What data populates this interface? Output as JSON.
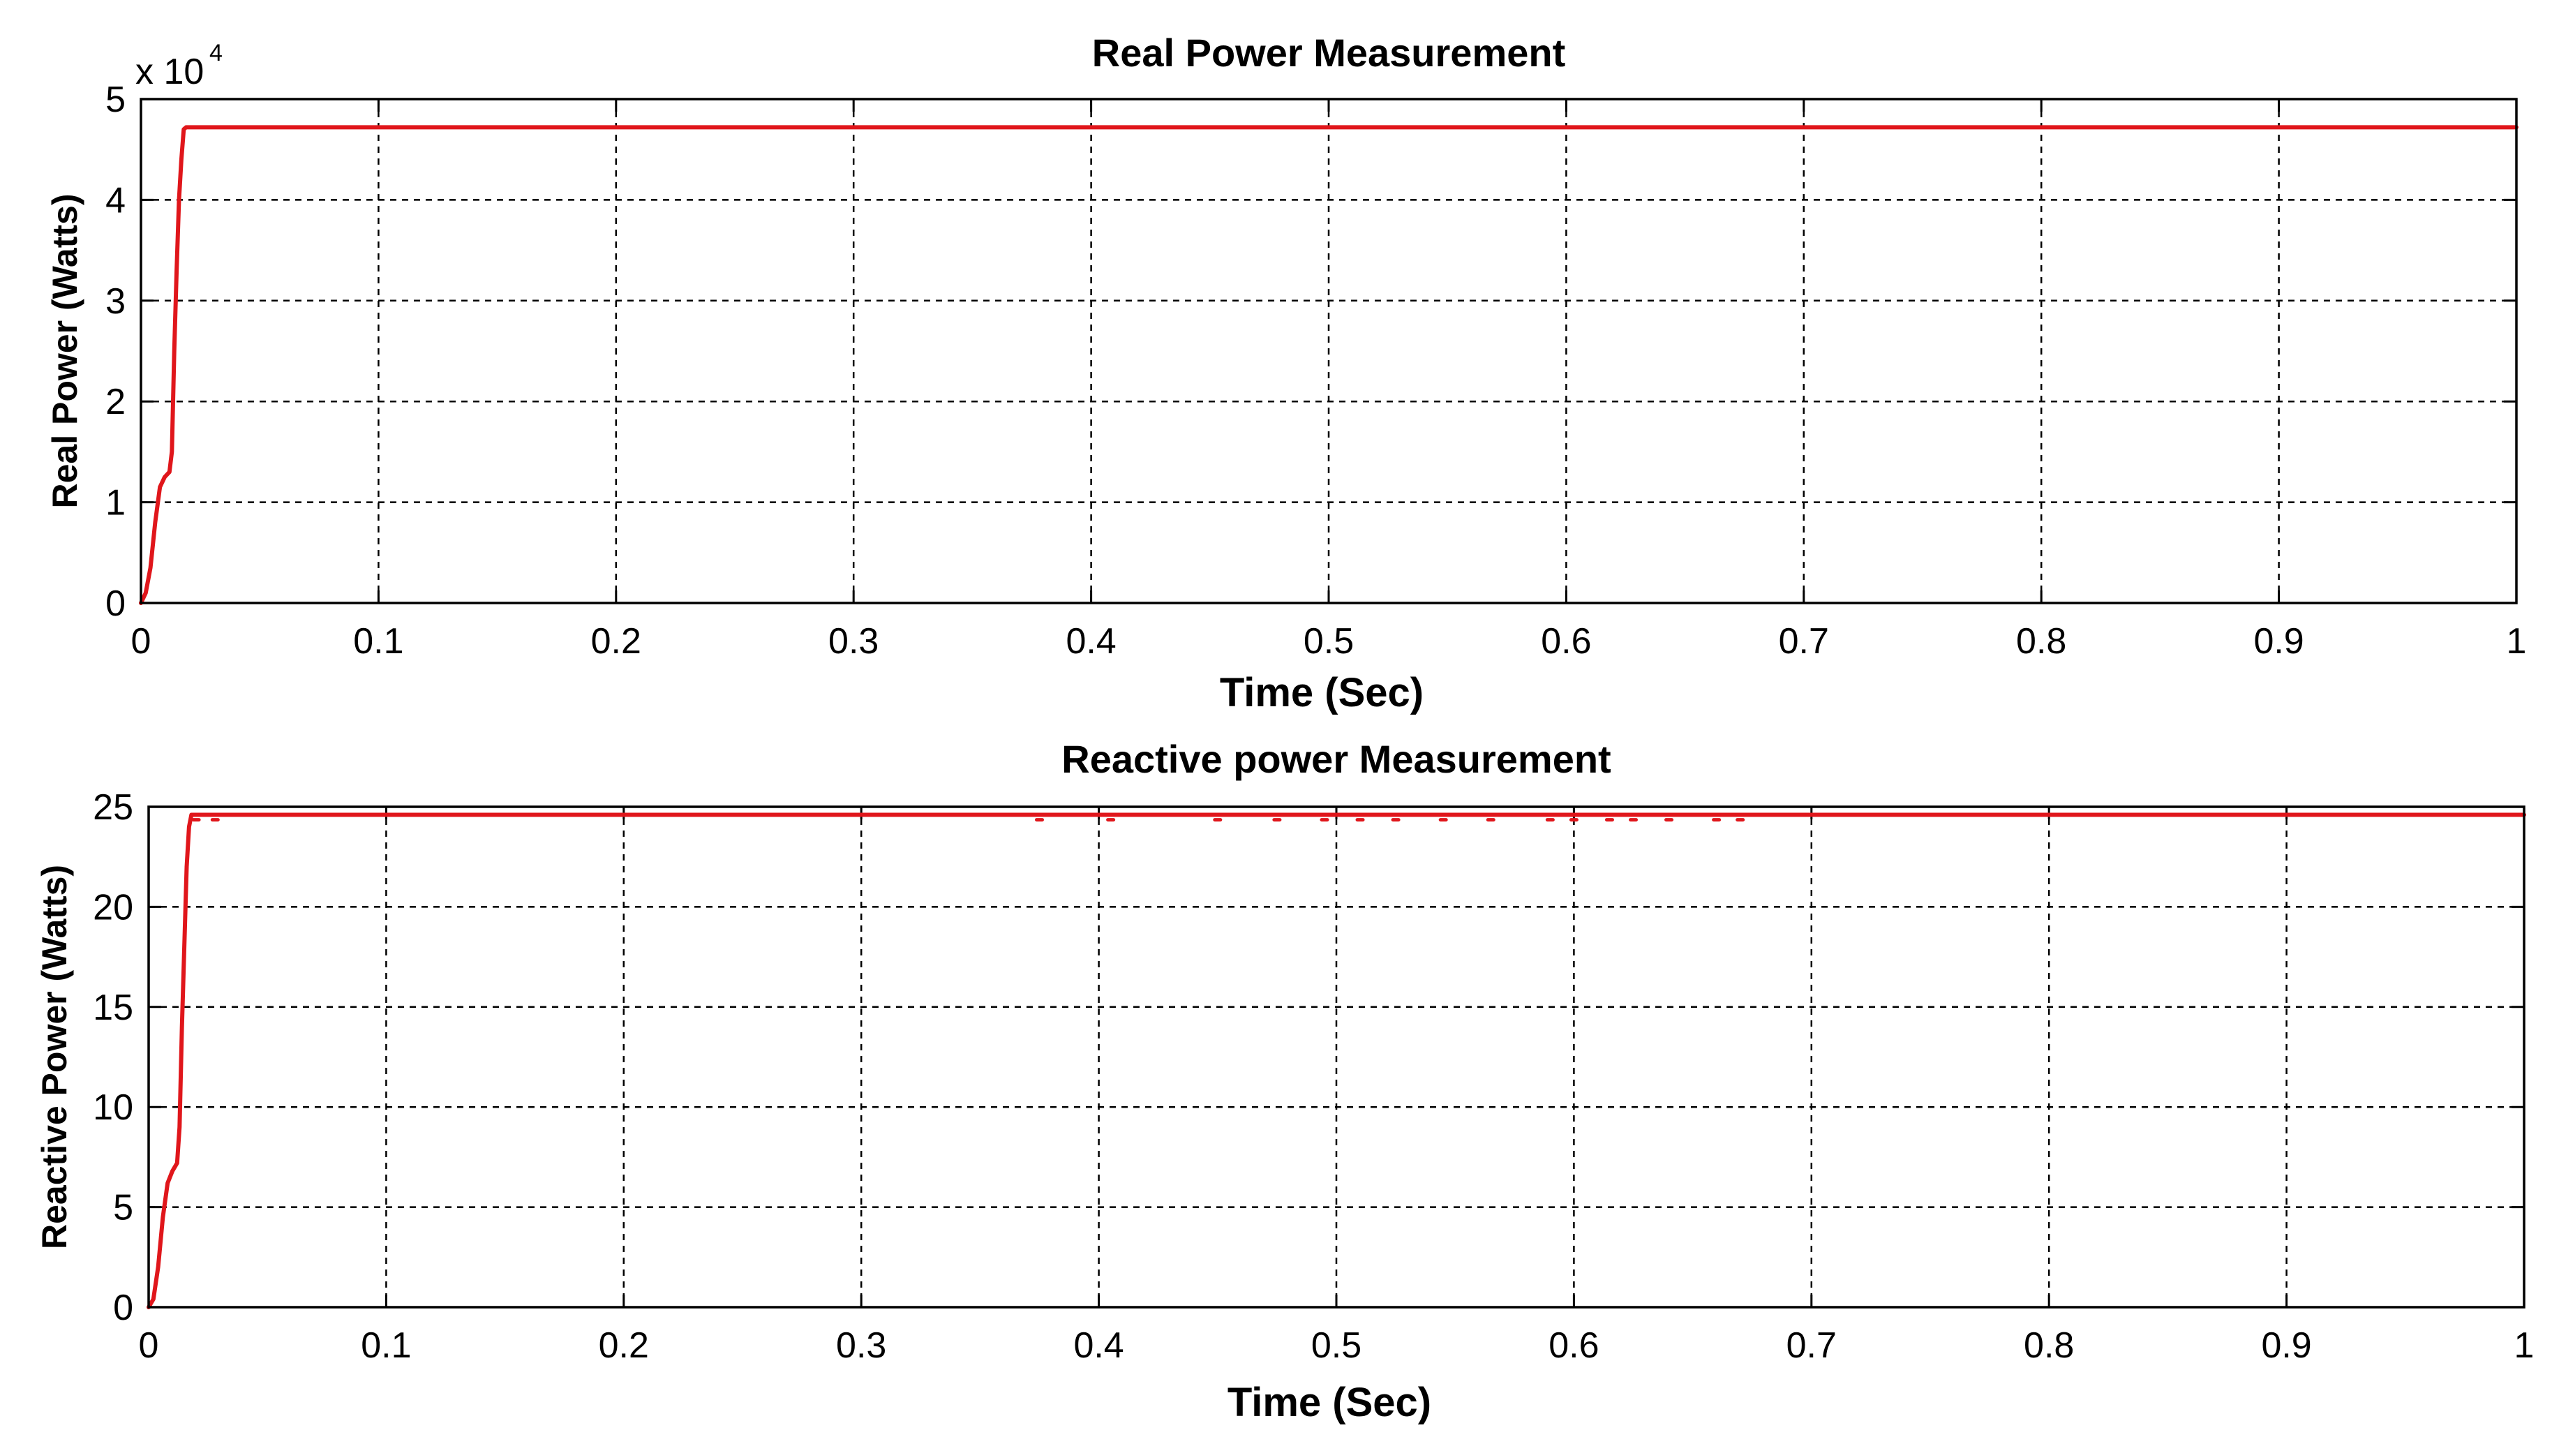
{
  "chart_data": [
    {
      "type": "line",
      "title": "Real Power Measurement",
      "xlabel": "Time (Sec)",
      "ylabel": "Real Power (Watts)",
      "xlim": [
        0,
        1
      ],
      "ylim": [
        0,
        50000
      ],
      "x_ticks": [
        0,
        0.1,
        0.2,
        0.3,
        0.4,
        0.5,
        0.6,
        0.7,
        0.8,
        0.9,
        1
      ],
      "x_tick_labels": [
        "0",
        "0.1",
        "0.2",
        "0.3",
        "0.4",
        "0.5",
        "0.6",
        "0.7",
        "0.8",
        "0.9",
        "1"
      ],
      "y_ticks": [
        0,
        10000,
        20000,
        30000,
        40000,
        50000
      ],
      "y_tick_labels": [
        "0",
        "1",
        "2",
        "3",
        "4",
        "5"
      ],
      "y_multiplier_base": "x 10",
      "y_multiplier_exponent": "4",
      "grid": true,
      "series_color": "#e0161b",
      "series": [
        {
          "x": [
            0,
            0.002,
            0.004,
            0.006,
            0.008,
            0.01,
            0.012,
            0.013,
            0.014,
            0.015,
            0.016,
            0.017,
            0.018,
            0.019,
            1
          ],
          "values": [
            0,
            1000,
            3500,
            8000,
            11500,
            12500,
            13000,
            15000,
            25000,
            33000,
            40000,
            44000,
            47000,
            47200,
            47200
          ]
        }
      ]
    },
    {
      "type": "line",
      "title": "Reactive power Measurement",
      "xlabel": "Time (Sec)",
      "ylabel": "Reactive Power (Watts)",
      "xlim": [
        0,
        1
      ],
      "ylim": [
        0,
        25
      ],
      "x_ticks": [
        0,
        0.1,
        0.2,
        0.3,
        0.4,
        0.5,
        0.6,
        0.7,
        0.8,
        0.9,
        1
      ],
      "x_tick_labels": [
        "0",
        "0.1",
        "0.2",
        "0.3",
        "0.4",
        "0.5",
        "0.6",
        "0.7",
        "0.8",
        "0.9",
        "1"
      ],
      "y_ticks": [
        0,
        5,
        10,
        15,
        20,
        25
      ],
      "y_tick_labels": [
        "0",
        "5",
        "10",
        "15",
        "20",
        "25"
      ],
      "grid": true,
      "series_color": "#e0161b",
      "series": [
        {
          "x": [
            0,
            0.002,
            0.004,
            0.006,
            0.008,
            0.01,
            0.012,
            0.013,
            0.014,
            0.015,
            0.016,
            0.017,
            0.018,
            0.019,
            1
          ],
          "values": [
            0,
            0.4,
            2,
            4.5,
            6.2,
            6.8,
            7.2,
            9,
            14,
            18,
            22,
            24,
            24.6,
            24.6,
            24.6
          ],
          "dip_x": [
            0.02,
            0.028,
            0.375,
            0.405,
            0.45,
            0.475,
            0.495,
            0.51,
            0.525,
            0.545,
            0.565,
            0.59,
            0.6,
            0.615,
            0.625,
            0.64,
            0.66,
            0.67
          ],
          "dip_value": 24.35
        }
      ]
    }
  ]
}
